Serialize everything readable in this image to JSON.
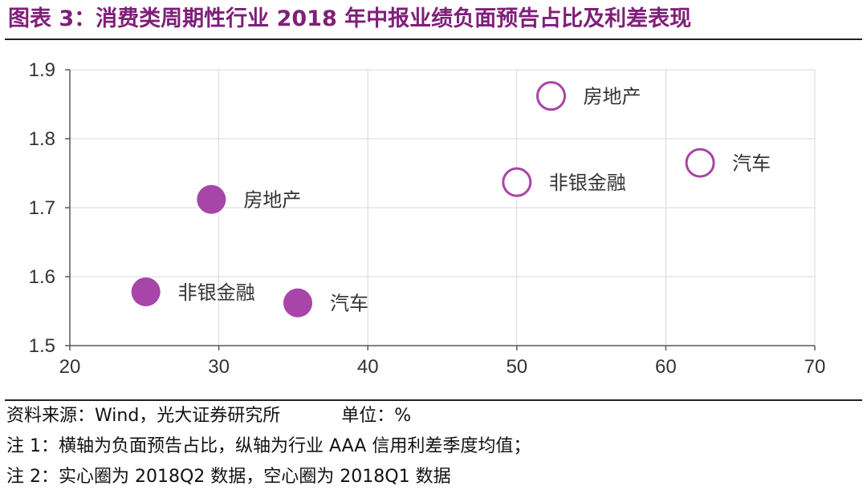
{
  "title": "图表 3：消费类周期性行业 2018 年中报业绩负面预告占比及利差表现",
  "source": "资料来源：Wind，光大证券研究所",
  "unit": "单位：%",
  "note1": "注 1：横轴为负面预告占比，纵轴为行业 AAA 信用利差季度均值；",
  "note2": "注 2：实心圈为 2018Q2 数据，空心圈为 2018Q1 数据",
  "colors": {
    "marker": "#a845a8",
    "grid": "#d9d9d9",
    "axis": "#595959",
    "title": "#7f1f79"
  },
  "chart_data": {
    "type": "scatter",
    "xlim": [
      20,
      70
    ],
    "ylim": [
      1.5,
      1.9
    ],
    "x_ticks": [
      "20",
      "30",
      "40",
      "50",
      "60",
      "70"
    ],
    "y_ticks": [
      "1.5",
      "1.6",
      "1.7",
      "1.8",
      "1.9"
    ],
    "grid": true,
    "series": [
      {
        "marker": "filled",
        "points": [
          {
            "label": "房地产",
            "x": 29.5,
            "y": 1.712
          },
          {
            "label": "非银金融",
            "x": 25.1,
            "y": 1.578
          },
          {
            "label": "汽车",
            "x": 35.3,
            "y": 1.562
          }
        ]
      },
      {
        "marker": "hollow",
        "points": [
          {
            "label": "房地产",
            "x": 52.3,
            "y": 1.862
          },
          {
            "label": "非银金融",
            "x": 50.0,
            "y": 1.737
          },
          {
            "label": "汽车",
            "x": 62.3,
            "y": 1.765
          }
        ]
      }
    ]
  }
}
